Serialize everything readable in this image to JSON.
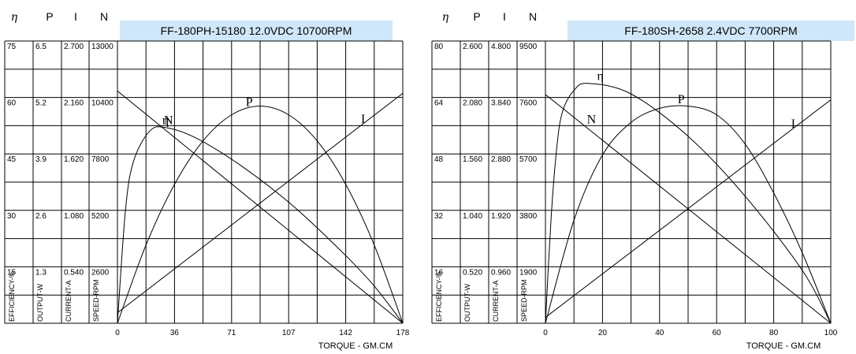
{
  "chart_data": [
    {
      "type": "line",
      "title": "FF-180PH-15180  12.0VDC   10700RPM",
      "xlabel": "TORQUE - GM.CM",
      "xlim": [
        0,
        178
      ],
      "x_ticks": [
        "0",
        "36",
        "71",
        "107",
        "142",
        "178"
      ],
      "column_heads": [
        "η",
        "P",
        "I",
        "N"
      ],
      "axes": [
        {
          "name": "η",
          "label": "EFFICIENCY-%",
          "ticks": [
            "15",
            "30",
            "45",
            "60",
            "75"
          ],
          "max": 75
        },
        {
          "name": "P",
          "label": "OUTPUT-W",
          "ticks": [
            "1.3",
            "2.6",
            "3.9",
            "5.2",
            "6.5"
          ],
          "max": 6.5
        },
        {
          "name": "I",
          "label": "CURRENT-A",
          "ticks": [
            "0.540",
            "1.080",
            "1.620",
            "2.160",
            "2.700"
          ],
          "max": 2.7
        },
        {
          "name": "N",
          "label": "SPEED-RPM",
          "ticks": [
            "2600",
            "5200",
            "7800",
            "10400",
            "13000"
          ],
          "max": 13000
        }
      ],
      "series": [
        {
          "name": "N",
          "axis": "N",
          "x": [
            0,
            178
          ],
          "values": [
            10700,
            0
          ]
        },
        {
          "name": "I",
          "axis": "I",
          "x": [
            0,
            178
          ],
          "values": [
            0.1,
            2.2
          ]
        },
        {
          "name": "P",
          "axis": "P",
          "x": [
            0,
            17.8,
            35.6,
            53.4,
            71.2,
            89,
            106.8,
            124.6,
            142.4,
            160.2,
            178
          ],
          "values": [
            0,
            1.8,
            3.2,
            4.2,
            4.8,
            5.0,
            4.8,
            4.2,
            3.2,
            1.8,
            0
          ]
        },
        {
          "name": "η",
          "axis": "η",
          "x": [
            0,
            5,
            10,
            20,
            30,
            50,
            80,
            110,
            140,
            160,
            178
          ],
          "values": [
            0,
            30,
            43,
            51,
            52,
            49,
            41,
            31,
            19,
            10,
            0
          ]
        }
      ]
    },
    {
      "type": "line",
      "title": "FF-180SH-2658  2.4VDC  7700RPM",
      "xlabel": "TORQUE - GM.CM",
      "xlim": [
        0,
        100
      ],
      "x_ticks": [
        "0",
        "20",
        "40",
        "60",
        "80",
        "100"
      ],
      "column_heads": [
        "η",
        "P",
        "I",
        "N"
      ],
      "axes": [
        {
          "name": "η",
          "label": "EFFICIENCY-%",
          "ticks": [
            "16",
            "32",
            "48",
            "64",
            "80"
          ],
          "max": 80
        },
        {
          "name": "P",
          "label": "OUTPUT-W",
          "ticks": [
            "0.520",
            "1.040",
            "1.560",
            "2.080",
            "2.600"
          ],
          "max": 2.6
        },
        {
          "name": "I",
          "label": "CURRENT-A",
          "ticks": [
            "0.960",
            "1.920",
            "2.880",
            "3.840",
            "4.800"
          ],
          "max": 4.8
        },
        {
          "name": "N",
          "label": "SPEED-RPM",
          "ticks": [
            "1900",
            "3800",
            "5700",
            "7600",
            "9500"
          ],
          "max": 9500
        }
      ],
      "series": [
        {
          "name": "N",
          "axis": "N",
          "x": [
            0,
            100
          ],
          "values": [
            7700,
            0
          ]
        },
        {
          "name": "I",
          "axis": "I",
          "x": [
            0,
            100
          ],
          "values": [
            0.1,
            3.8
          ]
        },
        {
          "name": "P",
          "axis": "P",
          "x": [
            0,
            10,
            20,
            30,
            40,
            50,
            60,
            70,
            80,
            90,
            100
          ],
          "values": [
            0,
            0.95,
            1.55,
            1.85,
            1.98,
            2.0,
            1.92,
            1.65,
            1.2,
            0.65,
            0
          ]
        },
        {
          "name": "η",
          "axis": "η",
          "x": [
            0,
            2,
            4,
            6,
            10,
            15,
            30,
            50,
            70,
            90,
            100
          ],
          "values": [
            0,
            30,
            50,
            60,
            66,
            68,
            65,
            53,
            36,
            15,
            0
          ]
        }
      ]
    }
  ]
}
